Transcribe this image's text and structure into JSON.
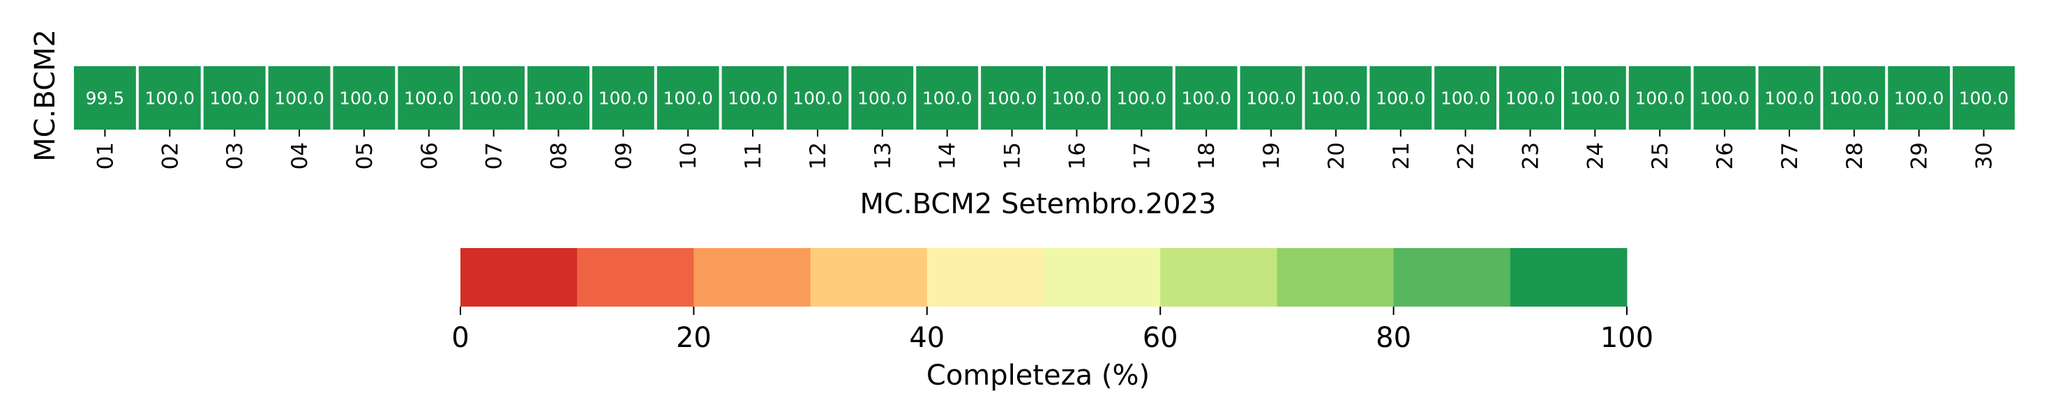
{
  "chart_data": {
    "type": "heatmap",
    "title": "",
    "xlabel": "MC.BCM2 Setembro.2023",
    "ylabel": "MC.BCM2",
    "rows": [
      "MC.BCM2"
    ],
    "categories": [
      "01",
      "02",
      "03",
      "04",
      "05",
      "06",
      "07",
      "08",
      "09",
      "10",
      "11",
      "12",
      "13",
      "14",
      "15",
      "16",
      "17",
      "18",
      "19",
      "20",
      "21",
      "22",
      "23",
      "24",
      "25",
      "26",
      "27",
      "28",
      "29",
      "30"
    ],
    "values": [
      [
        99.5,
        100.0,
        100.0,
        100.0,
        100.0,
        100.0,
        100.0,
        100.0,
        100.0,
        100.0,
        100.0,
        100.0,
        100.0,
        100.0,
        100.0,
        100.0,
        100.0,
        100.0,
        100.0,
        100.0,
        100.0,
        100.0,
        100.0,
        100.0,
        100.0,
        100.0,
        100.0,
        100.0,
        100.0,
        100.0
      ]
    ],
    "value_format": "0.0",
    "colorbar": {
      "label": "Completeza (%)",
      "range": [
        0,
        100
      ],
      "ticks": [
        0,
        20,
        40,
        60,
        80,
        100
      ],
      "bins": [
        {
          "from": 0,
          "to": 10,
          "color": "#d42d27"
        },
        {
          "from": 10,
          "to": 20,
          "color": "#ef6342"
        },
        {
          "from": 20,
          "to": 30,
          "color": "#f99c59"
        },
        {
          "from": 30,
          "to": 40,
          "color": "#fecc7b"
        },
        {
          "from": 40,
          "to": 50,
          "color": "#fff0a8"
        },
        {
          "from": 50,
          "to": 60,
          "color": "#eef8a8"
        },
        {
          "from": 60,
          "to": 70,
          "color": "#c5e67e"
        },
        {
          "from": 70,
          "to": 80,
          "color": "#93d067"
        },
        {
          "from": 80,
          "to": 90,
          "color": "#58b65f"
        },
        {
          "from": 90,
          "to": 100,
          "color": "#1a9850"
        }
      ]
    },
    "cell_text_color": "#ffffff",
    "grid": false
  }
}
